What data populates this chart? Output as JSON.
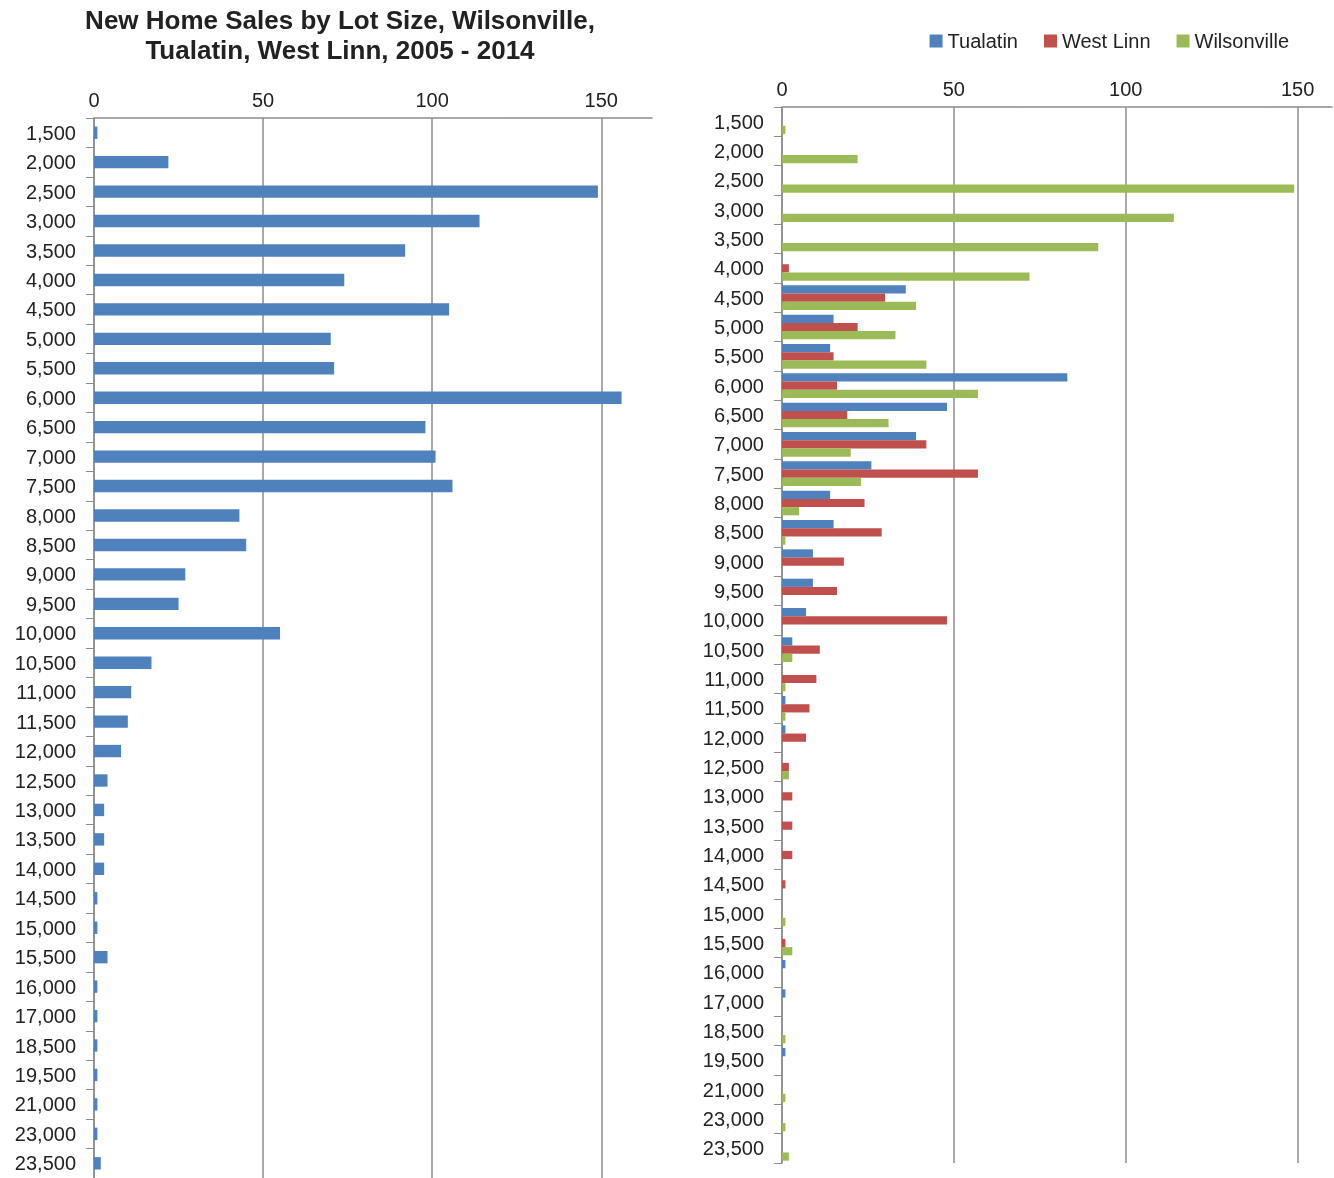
{
  "chart_data": [
    {
      "type": "bar",
      "orientation": "horizontal",
      "title": "New Home Sales by Lot Size, Wilsonville,\nTualatin, West Linn, 2005 - 2014",
      "categories": [
        "1,500",
        "2,000",
        "2,500",
        "3,000",
        "3,500",
        "4,000",
        "4,500",
        "5,000",
        "5,500",
        "6,000",
        "6,500",
        "7,000",
        "7,500",
        "8,000",
        "8,500",
        "9,000",
        "9,500",
        "10,000",
        "10,500",
        "11,000",
        "11,500",
        "12,000",
        "12,500",
        "13,000",
        "13,500",
        "14,000",
        "14,500",
        "15,000",
        "15,500",
        "16,000",
        "17,000",
        "18,500",
        "19,500",
        "21,000",
        "23,000",
        "23,500"
      ],
      "values": [
        1,
        22,
        149,
        114,
        92,
        74,
        105,
        70,
        71,
        156,
        98,
        101,
        106,
        43,
        45,
        27,
        25,
        55,
        17,
        11,
        10,
        8,
        4,
        3,
        3,
        3,
        1,
        1,
        4,
        1,
        1,
        1,
        1,
        1,
        1,
        2
      ],
      "color": "#4f81bd",
      "xlim": [
        0,
        165
      ],
      "xticks": [
        0,
        50,
        100,
        150
      ],
      "grid": "x",
      "legend": false
    },
    {
      "type": "bar",
      "orientation": "horizontal",
      "categories": [
        "1,500",
        "2,000",
        "2,500",
        "3,000",
        "3,500",
        "4,000",
        "4,500",
        "5,000",
        "5,500",
        "6,000",
        "6,500",
        "7,000",
        "7,500",
        "8,000",
        "8,500",
        "9,000",
        "9,500",
        "10,000",
        "10,500",
        "11,000",
        "11,500",
        "12,000",
        "12,500",
        "13,000",
        "13,500",
        "14,000",
        "14,500",
        "15,000",
        "15,500",
        "16,000",
        "17,000",
        "18,500",
        "19,500",
        "21,000",
        "23,000",
        "23,500"
      ],
      "series": [
        {
          "name": "Tualatin",
          "color": "#4f81bd",
          "values": [
            0,
            0,
            0,
            0,
            0,
            0,
            36,
            15,
            14,
            83,
            48,
            39,
            26,
            14,
            15,
            9,
            9,
            7,
            3,
            0,
            1,
            1,
            0,
            0,
            0,
            0,
            0,
            0,
            0,
            1,
            1,
            0,
            1,
            0,
            0,
            0
          ]
        },
        {
          "name": "West Linn",
          "color": "#c0504d",
          "values": [
            0,
            0,
            0,
            0,
            0,
            2,
            30,
            22,
            15,
            16,
            19,
            42,
            57,
            24,
            29,
            18,
            16,
            48,
            11,
            10,
            8,
            7,
            2,
            3,
            3,
            3,
            1,
            0,
            1,
            0,
            0,
            0,
            0,
            0,
            0,
            0
          ]
        },
        {
          "name": "Wilsonville",
          "color": "#9bbb59",
          "values": [
            1,
            22,
            149,
            114,
            92,
            72,
            39,
            33,
            42,
            57,
            31,
            20,
            23,
            5,
            1,
            0,
            0,
            0,
            3,
            1,
            1,
            0,
            2,
            0,
            0,
            0,
            0,
            1,
            3,
            0,
            0,
            1,
            0,
            1,
            1,
            2
          ]
        }
      ],
      "xlim": [
        0,
        160
      ],
      "xticks": [
        0,
        50,
        100,
        150
      ],
      "grid": "x",
      "legend": "top right"
    }
  ]
}
